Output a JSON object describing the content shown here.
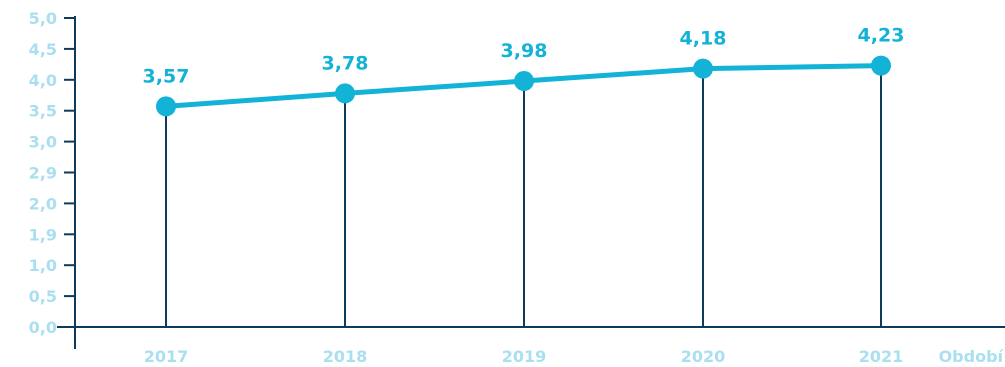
{
  "chart_data": {
    "type": "line",
    "categories": [
      "2017",
      "2018",
      "2019",
      "2020",
      "2021"
    ],
    "values": [
      3.57,
      3.78,
      3.98,
      4.18,
      4.23
    ],
    "value_labels": [
      "3,57",
      "3,78",
      "3,98",
      "4,18",
      "4,23"
    ],
    "y_ticks": [
      "0,0",
      "0,5",
      "1,0",
      "1,9",
      "2,0",
      "2,9",
      "3,0",
      "3,5",
      "4,0",
      "4,5",
      "5,0"
    ],
    "ylim": [
      0,
      5
    ],
    "title": "",
    "xlabel": "Období",
    "ylabel": "",
    "grid": false,
    "legend": "none",
    "colors": {
      "line": "#13b3d8",
      "marker": "#13b3d8",
      "data_label": "#13b3d8",
      "axis": "#0e3a5c",
      "drop_line": "#0e3a5c",
      "tick_label": "#a9dff0"
    }
  }
}
